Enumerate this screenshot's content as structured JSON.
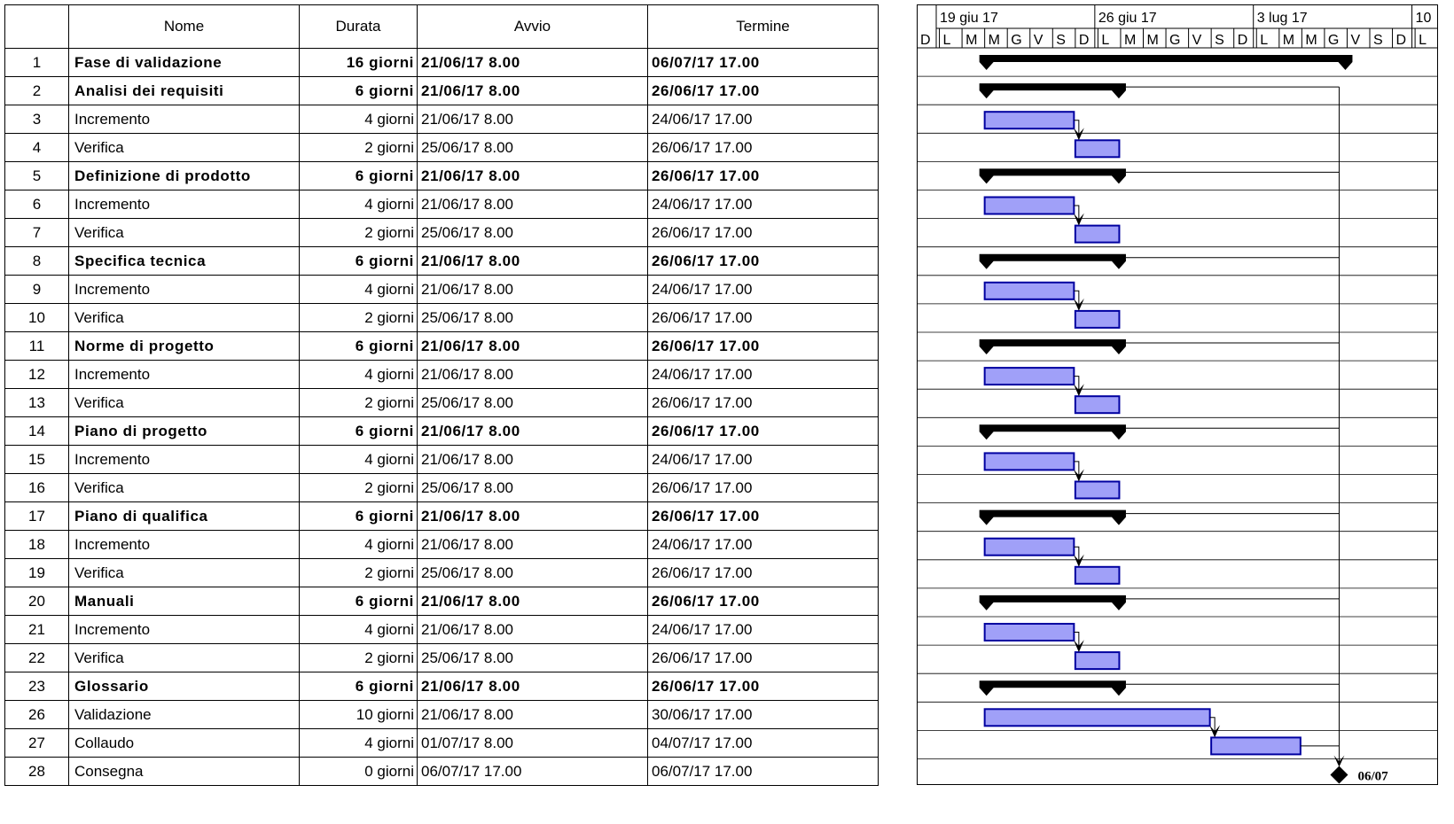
{
  "columns": {
    "id": "",
    "name": "Nome",
    "duration": "Durata",
    "start": "Avvio",
    "end": "Termine"
  },
  "chart_data": {
    "type": "gantt",
    "timeline": {
      "start": "2017-06-18",
      "weeks": [
        "19 giu 17",
        "26 giu 17",
        "3 lug 17",
        "10"
      ],
      "days": [
        "D",
        "L",
        "M",
        "M",
        "G",
        "V",
        "S",
        "D",
        "L",
        "M",
        "M",
        "G",
        "V",
        "S",
        "D",
        "L",
        "M",
        "M",
        "G",
        "V",
        "S",
        "D",
        "L"
      ]
    },
    "bar_color": "#a0a0f8",
    "bar_border": "#0000a0",
    "summary_color": "#000000",
    "milestone_label": "06/07",
    "tasks": [
      {
        "id": "1",
        "name": "Fase di validazione",
        "duration": "16 giorni",
        "start": "21/06/17 8.00",
        "end": "06/07/17 17.00",
        "type": "summary",
        "level": 0,
        "s": "2017-06-21",
        "e": "2017-07-06"
      },
      {
        "id": "2",
        "name": "Analisi dei requisiti",
        "duration": "6 giorni",
        "start": "21/06/17 8.00",
        "end": "26/06/17 17.00",
        "type": "summary",
        "level": 1,
        "s": "2017-06-21",
        "e": "2017-06-26"
      },
      {
        "id": "3",
        "name": "Incremento",
        "duration": "4 giorni",
        "start": "21/06/17 8.00",
        "end": "24/06/17 17.00",
        "type": "task",
        "level": 2,
        "s": "2017-06-21",
        "e": "2017-06-24"
      },
      {
        "id": "4",
        "name": "Verifica",
        "duration": "2 giorni",
        "start": "25/06/17 8.00",
        "end": "26/06/17 17.00",
        "type": "task",
        "level": 2,
        "s": "2017-06-25",
        "e": "2017-06-26"
      },
      {
        "id": "5",
        "name": "Definizione di prodotto",
        "duration": "6 giorni",
        "start": "21/06/17 8.00",
        "end": "26/06/17 17.00",
        "type": "summary",
        "level": 1,
        "s": "2017-06-21",
        "e": "2017-06-26"
      },
      {
        "id": "6",
        "name": "Incremento",
        "duration": "4 giorni",
        "start": "21/06/17 8.00",
        "end": "24/06/17 17.00",
        "type": "task",
        "level": 2,
        "s": "2017-06-21",
        "e": "2017-06-24"
      },
      {
        "id": "7",
        "name": "Verifica",
        "duration": "2 giorni",
        "start": "25/06/17 8.00",
        "end": "26/06/17 17.00",
        "type": "task",
        "level": 2,
        "s": "2017-06-25",
        "e": "2017-06-26"
      },
      {
        "id": "8",
        "name": "Specifica tecnica",
        "duration": "6 giorni",
        "start": "21/06/17 8.00",
        "end": "26/06/17 17.00",
        "type": "summary",
        "level": 1,
        "s": "2017-06-21",
        "e": "2017-06-26"
      },
      {
        "id": "9",
        "name": "Incremento",
        "duration": "4 giorni",
        "start": "21/06/17 8.00",
        "end": "24/06/17 17.00",
        "type": "task",
        "level": 2,
        "s": "2017-06-21",
        "e": "2017-06-24"
      },
      {
        "id": "10",
        "name": "Verifica",
        "duration": "2 giorni",
        "start": "25/06/17 8.00",
        "end": "26/06/17 17.00",
        "type": "task",
        "level": 2,
        "s": "2017-06-25",
        "e": "2017-06-26"
      },
      {
        "id": "11",
        "name": "Norme di progetto",
        "duration": "6 giorni",
        "start": "21/06/17 8.00",
        "end": "26/06/17 17.00",
        "type": "summary",
        "level": 1,
        "s": "2017-06-21",
        "e": "2017-06-26"
      },
      {
        "id": "12",
        "name": "Incremento",
        "duration": "4 giorni",
        "start": "21/06/17 8.00",
        "end": "24/06/17 17.00",
        "type": "task",
        "level": 2,
        "s": "2017-06-21",
        "e": "2017-06-24"
      },
      {
        "id": "13",
        "name": "Verifica",
        "duration": "2 giorni",
        "start": "25/06/17 8.00",
        "end": "26/06/17 17.00",
        "type": "task",
        "level": 2,
        "s": "2017-06-25",
        "e": "2017-06-26"
      },
      {
        "id": "14",
        "name": "Piano di progetto",
        "duration": "6 giorni",
        "start": "21/06/17 8.00",
        "end": "26/06/17 17.00",
        "type": "summary",
        "level": 1,
        "s": "2017-06-21",
        "e": "2017-06-26"
      },
      {
        "id": "15",
        "name": "Incremento",
        "duration": "4 giorni",
        "start": "21/06/17 8.00",
        "end": "24/06/17 17.00",
        "type": "task",
        "level": 2,
        "s": "2017-06-21",
        "e": "2017-06-24"
      },
      {
        "id": "16",
        "name": "Verifica",
        "duration": "2 giorni",
        "start": "25/06/17 8.00",
        "end": "26/06/17 17.00",
        "type": "task",
        "level": 2,
        "s": "2017-06-25",
        "e": "2017-06-26"
      },
      {
        "id": "17",
        "name": "Piano di qualifica",
        "duration": "6 giorni",
        "start": "21/06/17 8.00",
        "end": "26/06/17 17.00",
        "type": "summary",
        "level": 1,
        "s": "2017-06-21",
        "e": "2017-06-26"
      },
      {
        "id": "18",
        "name": "Incremento",
        "duration": "4 giorni",
        "start": "21/06/17 8.00",
        "end": "24/06/17 17.00",
        "type": "task",
        "level": 2,
        "s": "2017-06-21",
        "e": "2017-06-24"
      },
      {
        "id": "19",
        "name": "Verifica",
        "duration": "2 giorni",
        "start": "25/06/17 8.00",
        "end": "26/06/17 17.00",
        "type": "task",
        "level": 2,
        "s": "2017-06-25",
        "e": "2017-06-26"
      },
      {
        "id": "20",
        "name": "Manuali",
        "duration": "6 giorni",
        "start": "21/06/17 8.00",
        "end": "26/06/17 17.00",
        "type": "summary",
        "level": 1,
        "s": "2017-06-21",
        "e": "2017-06-26"
      },
      {
        "id": "21",
        "name": "Incremento",
        "duration": "4 giorni",
        "start": "21/06/17 8.00",
        "end": "24/06/17 17.00",
        "type": "task",
        "level": 2,
        "s": "2017-06-21",
        "e": "2017-06-24"
      },
      {
        "id": "22",
        "name": "Verifica",
        "duration": "2 giorni",
        "start": "25/06/17 8.00",
        "end": "26/06/17 17.00",
        "type": "task",
        "level": 2,
        "s": "2017-06-25",
        "e": "2017-06-26"
      },
      {
        "id": "23",
        "name": "Glossario",
        "duration": "6 giorni",
        "start": "21/06/17 8.00",
        "end": "26/06/17 17.00",
        "type": "summary",
        "level": 1,
        "s": "2017-06-21",
        "e": "2017-06-26"
      },
      {
        "id": "26",
        "name": "Validazione",
        "duration": "10 giorni",
        "start": "21/06/17 8.00",
        "end": "30/06/17 17.00",
        "type": "task",
        "level": 1,
        "s": "2017-06-21",
        "e": "2017-06-30"
      },
      {
        "id": "27",
        "name": "Collaudo",
        "duration": "4 giorni",
        "start": "01/07/17 8.00",
        "end": "04/07/17 17.00",
        "type": "task",
        "level": 1,
        "s": "2017-07-01",
        "e": "2017-07-04"
      },
      {
        "id": "28",
        "name": "Consegna",
        "duration": "0 giorni",
        "start": "06/07/17 17.00",
        "end": "06/07/17 17.00",
        "type": "milestone",
        "level": 1,
        "s": "2017-07-06",
        "e": "2017-07-06"
      }
    ],
    "links": [
      [
        "3",
        "4"
      ],
      [
        "6",
        "7"
      ],
      [
        "9",
        "10"
      ],
      [
        "12",
        "13"
      ],
      [
        "15",
        "16"
      ],
      [
        "18",
        "19"
      ],
      [
        "21",
        "22"
      ],
      [
        "26",
        "27"
      ]
    ],
    "to_milestone": [
      "2",
      "5",
      "8",
      "11",
      "14",
      "17",
      "20",
      "23",
      "27"
    ]
  }
}
